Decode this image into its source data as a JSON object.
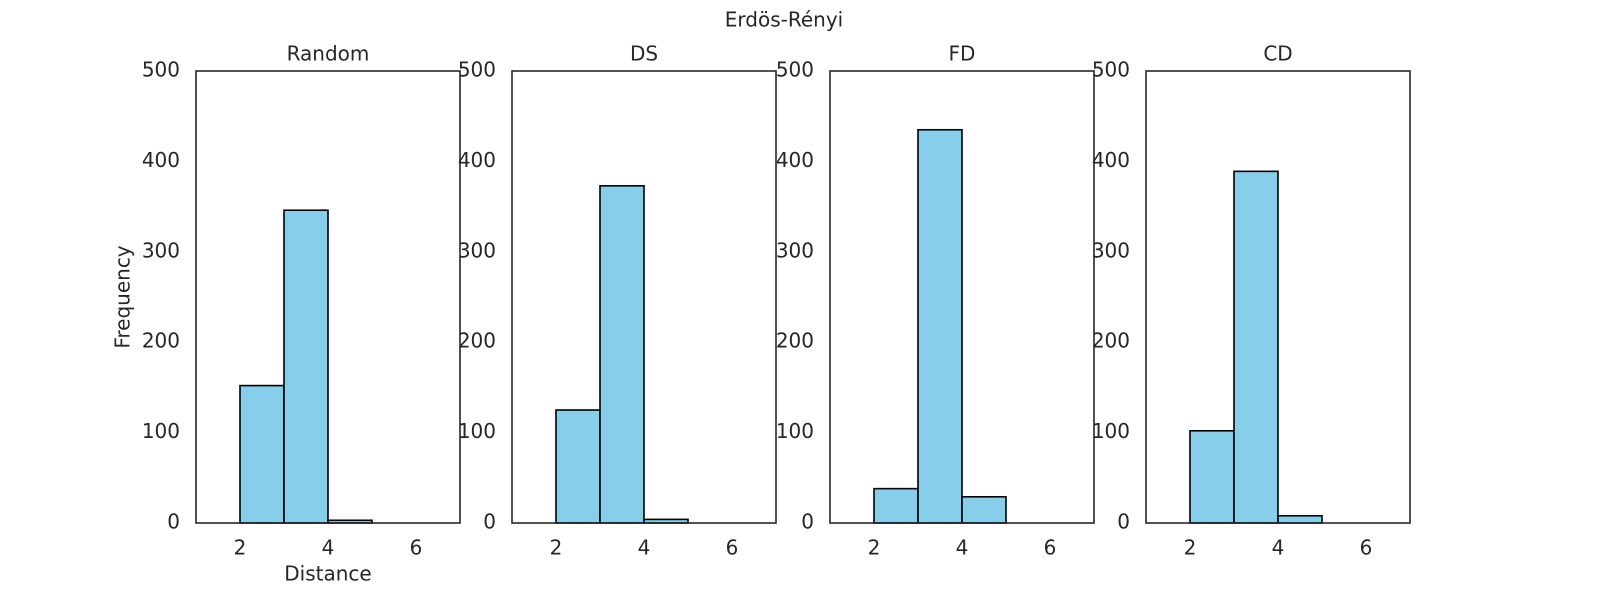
{
  "title": "Erdös-Rényi",
  "chart_data": [
    {
      "type": "histogram",
      "title": "Random",
      "xlabel": "Distance",
      "ylabel": "Frequency",
      "bins": [
        2,
        3,
        4,
        5
      ],
      "values": [
        152,
        346,
        3
      ],
      "color": "#87ceeb",
      "edgecolor": "#000000",
      "xlim": [
        1,
        7
      ],
      "xticks": [
        2,
        4,
        6
      ],
      "ylim": [
        0,
        500
      ],
      "yticks": [
        0,
        100,
        200,
        300,
        400,
        500
      ]
    },
    {
      "type": "histogram",
      "title": "DS",
      "bins": [
        2,
        3,
        4,
        5
      ],
      "values": [
        125,
        373,
        4
      ],
      "color": "#87ceeb",
      "edgecolor": "#000000",
      "xlim": [
        1,
        7
      ],
      "xticks": [
        2,
        4,
        6
      ],
      "ylim": [
        0,
        500
      ],
      "yticks": [
        0,
        100,
        200,
        300,
        400,
        500
      ]
    },
    {
      "type": "histogram",
      "title": "FD",
      "bins": [
        2,
        3,
        4,
        5
      ],
      "values": [
        38,
        435,
        29
      ],
      "color": "#87ceeb",
      "edgecolor": "#000000",
      "xlim": [
        1,
        7
      ],
      "xticks": [
        2,
        4,
        6
      ],
      "ylim": [
        0,
        500
      ],
      "yticks": [
        0,
        100,
        200,
        300,
        400,
        500
      ]
    },
    {
      "type": "histogram",
      "title": "CD",
      "bins": [
        2,
        3,
        4,
        5
      ],
      "values": [
        102,
        389,
        8
      ],
      "color": "#87ceeb",
      "edgecolor": "#000000",
      "xlim": [
        1,
        7
      ],
      "xticks": [
        2,
        4,
        6
      ],
      "ylim": [
        0,
        500
      ],
      "yticks": [
        0,
        100,
        200,
        300,
        400,
        500
      ]
    }
  ]
}
